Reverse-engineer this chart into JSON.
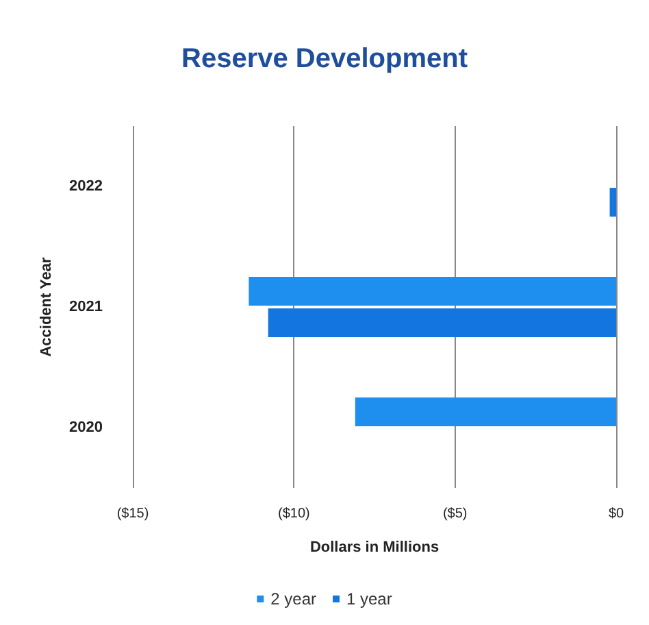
{
  "chart_data": {
    "type": "bar",
    "orientation": "horizontal",
    "title": "Reserve Development",
    "xlabel": "Dollars in Millions",
    "ylabel": "Accident Year",
    "categories": [
      "2022",
      "2021",
      "2020"
    ],
    "series": [
      {
        "name": "2 year",
        "color": "#1e8fef",
        "values": [
          null,
          -11.4,
          -8.1
        ]
      },
      {
        "name": "1 year",
        "color": "#1275e0",
        "values": [
          -0.2,
          -10.8,
          null
        ]
      }
    ],
    "xlim": [
      -15,
      0
    ],
    "xticks": [
      {
        "value": -15,
        "label": "($15)"
      },
      {
        "value": -10,
        "label": "($10)"
      },
      {
        "value": -5,
        "label": "($5)"
      },
      {
        "value": 0,
        "label": "$0"
      }
    ],
    "grid": "x",
    "legend": "bottom"
  }
}
